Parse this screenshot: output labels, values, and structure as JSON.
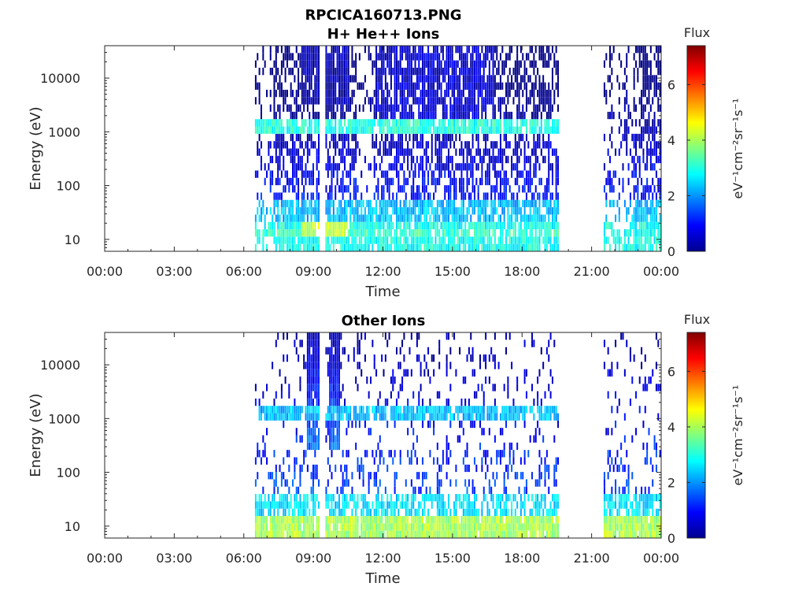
{
  "figure": {
    "title_line1": "RPCICA160713.PNG",
    "title_line2": "H+ He++ Ions"
  },
  "chart_data": [
    {
      "type": "heatmap",
      "title": "H+ He++ Ions",
      "xlabel": "Time",
      "ylabel": "Energy (eV)",
      "x_ticks": [
        "00:00",
        "03:00",
        "06:00",
        "09:00",
        "12:00",
        "15:00",
        "18:00",
        "21:00",
        "00:00"
      ],
      "x_range_hours": [
        0,
        24
      ],
      "y_scale": "log",
      "y_ticks": [
        10,
        100,
        1000,
        10000
      ],
      "y_tick_labels": [
        "10",
        "100",
        "1000",
        "10000"
      ],
      "y_range": [
        6,
        40000
      ],
      "colorbar": {
        "title": "Flux",
        "unit": "eV⁻¹cm⁻²sr⁻¹s⁻¹",
        "range": [
          0,
          7.4
        ],
        "ticks": [
          "0",
          "2",
          "4",
          "6"
        ],
        "colormap": "jet"
      },
      "data_intervals_hours": [
        [
          6.5,
          9.3
        ],
        [
          9.5,
          19.6
        ],
        [
          21.5,
          24.0
        ]
      ],
      "gaps_hours": [
        [
          9.3,
          9.5
        ],
        [
          19.6,
          21.5
        ]
      ],
      "features": [
        {
          "energy_eV": 1200,
          "hours": [
            6.5,
            19.6
          ],
          "flux": 3.0
        },
        {
          "energy_eV": 12,
          "hours": [
            6.5,
            19.6
          ],
          "flux": 3.2
        },
        {
          "energy_eV": 15,
          "hours": [
            8.5,
            10.5
          ],
          "flux": 4.2
        }
      ]
    },
    {
      "type": "heatmap",
      "title": "Other Ions",
      "xlabel": "Time",
      "ylabel": "Energy (eV)",
      "x_ticks": [
        "00:00",
        "03:00",
        "06:00",
        "09:00",
        "12:00",
        "15:00",
        "18:00",
        "21:00",
        "00:00"
      ],
      "x_range_hours": [
        0,
        24
      ],
      "y_scale": "log",
      "y_ticks": [
        10,
        100,
        1000,
        10000
      ],
      "y_tick_labels": [
        "10",
        "100",
        "1000",
        "10000"
      ],
      "y_range": [
        6,
        40000
      ],
      "colorbar": {
        "title": "Flux",
        "unit": "eV⁻¹cm⁻²sr⁻¹s⁻¹",
        "range": [
          0,
          7.4
        ],
        "ticks": [
          "0",
          "2",
          "4",
          "6"
        ],
        "colormap": "jet"
      },
      "data_intervals_hours": [
        [
          6.5,
          9.3
        ],
        [
          9.5,
          19.6
        ],
        [
          21.5,
          24.0
        ]
      ],
      "gaps_hours": [
        [
          9.3,
          9.5
        ],
        [
          19.6,
          21.5
        ]
      ],
      "features": [
        {
          "energy_eV": 1250,
          "hours": [
            6.5,
            19.6
          ],
          "flux": 2.3
        },
        {
          "energy_eV": 11,
          "hours": [
            6.5,
            19.6
          ],
          "flux": 4.0
        },
        {
          "energy_eV": 20000,
          "hours": [
            8.7,
            10.2
          ],
          "flux": 0.6
        }
      ]
    }
  ]
}
